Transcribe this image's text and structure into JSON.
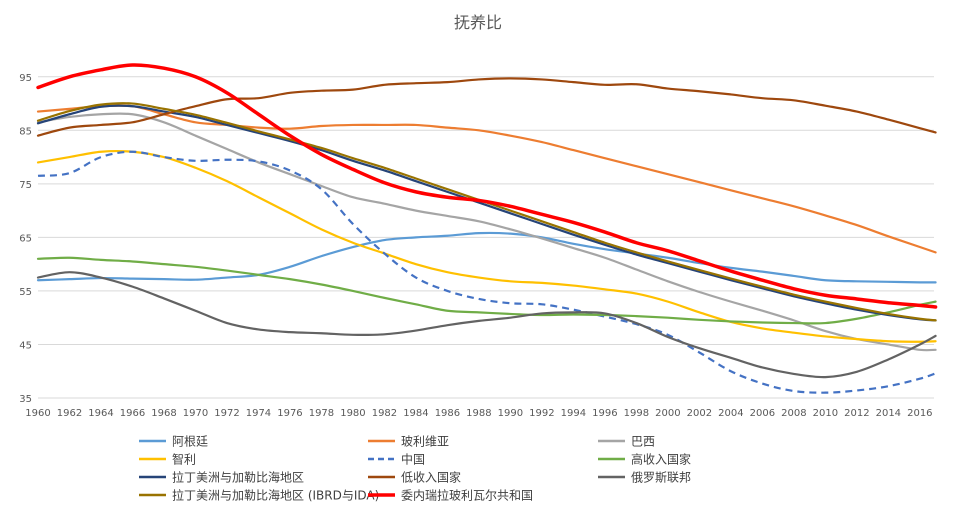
{
  "chart_data": {
    "type": "line",
    "title": "抚养比",
    "xlabel": "",
    "ylabel": "",
    "x": [
      1960,
      1962,
      1964,
      1966,
      1968,
      1970,
      1972,
      1974,
      1976,
      1978,
      1980,
      1982,
      1984,
      1986,
      1988,
      1990,
      1992,
      1994,
      1996,
      1998,
      2000,
      2002,
      2004,
      2006,
      2008,
      2010,
      2012,
      2014,
      2016,
      2017
    ],
    "x_tick_labels": [
      "1960",
      "1962",
      "1964",
      "1966",
      "1968",
      "1970",
      "1972",
      "1974",
      "1976",
      "1978",
      "1980",
      "1982",
      "1984",
      "1986",
      "1988",
      "1990",
      "1992",
      "1994",
      "1996",
      "1998",
      "2000",
      "2002",
      "2004",
      "2006",
      "2008",
      "2010",
      "2012",
      "2014",
      "2016"
    ],
    "ylim": [
      35,
      100
    ],
    "y_ticks": [
      35,
      45,
      55,
      65,
      75,
      85,
      95
    ],
    "y_tick_labels": [
      "35",
      "45",
      "55",
      "65",
      "75",
      "85",
      "95"
    ],
    "grid": "horizontal",
    "legend_position": "bottom",
    "series": [
      {
        "name": "阿根廷",
        "color": "#5B9BD5",
        "dash": false,
        "width": 2.2,
        "values": [
          57,
          57.2,
          57.4,
          57.3,
          57.2,
          57.1,
          57.5,
          58,
          59.5,
          61.5,
          63.2,
          64.5,
          65,
          65.3,
          65.8,
          65.7,
          65,
          63.8,
          62.8,
          62,
          61.2,
          60.2,
          59.3,
          58.6,
          57.8,
          57,
          56.8,
          56.7,
          56.6,
          56.6
        ]
      },
      {
        "name": "玻利维亚",
        "color": "#ED7D31",
        "dash": false,
        "width": 2.2,
        "values": [
          88.5,
          89,
          89.5,
          89.5,
          88,
          86.5,
          86,
          85.5,
          85.3,
          85.8,
          86,
          86,
          86,
          85.5,
          85,
          84,
          82.8,
          81.3,
          79.8,
          78.3,
          76.8,
          75.3,
          73.8,
          72.3,
          70.8,
          69.1,
          67.3,
          65.2,
          63.2,
          62.2
        ]
      },
      {
        "name": "巴西",
        "color": "#A5A5A5",
        "dash": false,
        "width": 2.2,
        "values": [
          86.5,
          87.5,
          88,
          88,
          86.5,
          84,
          81.5,
          79,
          76.8,
          74.6,
          72.5,
          71.3,
          70,
          69,
          68,
          66.5,
          64.8,
          63,
          61.2,
          59,
          56.8,
          54.8,
          53,
          51.3,
          49.5,
          47.5,
          46,
          45,
          44,
          44
        ]
      },
      {
        "name": "智利",
        "color": "#FFC000",
        "dash": false,
        "width": 2.2,
        "values": [
          79,
          80,
          81,
          81,
          80,
          78,
          75.5,
          72.5,
          69.5,
          66.5,
          64,
          62,
          60,
          58.5,
          57.5,
          56.8,
          56.5,
          56,
          55.3,
          54.5,
          53,
          51,
          49.2,
          48,
          47.2,
          46.5,
          46,
          45.6,
          45.5,
          45.6
        ]
      },
      {
        "name": "中国",
        "color": "#4472C4",
        "dash": true,
        "width": 2.2,
        "values": [
          76.5,
          77,
          80,
          81,
          80,
          79.3,
          79.5,
          79.2,
          77.5,
          74,
          67.5,
          62,
          57.5,
          55,
          53.5,
          52.7,
          52.5,
          51.5,
          50.2,
          48.8,
          46.8,
          43.5,
          40,
          37.7,
          36.3,
          36,
          36.4,
          37.2,
          38.6,
          39.6
        ]
      },
      {
        "name": "高收入国家",
        "color": "#70AD47",
        "dash": false,
        "width": 2.2,
        "values": [
          61,
          61.2,
          60.8,
          60.5,
          60,
          59.5,
          58.8,
          58,
          57.2,
          56.2,
          55,
          53.7,
          52.5,
          51.3,
          51,
          50.7,
          50.5,
          50.6,
          50.5,
          50.3,
          50,
          49.6,
          49.3,
          49.1,
          49,
          49,
          49.8,
          51,
          52.4,
          53
        ]
      },
      {
        "name": "拉丁美洲与加勒比海地区",
        "color": "#264478",
        "dash": false,
        "width": 2.2,
        "values": [
          86.3,
          88,
          89.4,
          89.5,
          88.5,
          87.5,
          86,
          84.5,
          83,
          81.3,
          79.3,
          77.5,
          75.5,
          73.5,
          71.5,
          69.5,
          67.5,
          65.5,
          63.6,
          61.8,
          60.2,
          58.6,
          57,
          55.5,
          54,
          52.7,
          51.5,
          50.5,
          49.7,
          49.5
        ]
      },
      {
        "name": "低收入国家",
        "color": "#9E480E",
        "dash": false,
        "width": 2.2,
        "values": [
          84,
          85.5,
          86,
          86.5,
          88,
          89.5,
          90.8,
          91,
          92,
          92.4,
          92.6,
          93.5,
          93.8,
          94,
          94.5,
          94.7,
          94.5,
          94,
          93.5,
          93.6,
          92.8,
          92.3,
          91.7,
          91,
          90.6,
          89.6,
          88.5,
          87,
          85.4,
          84.6
        ]
      },
      {
        "name": "俄罗斯联邦",
        "color": "#636363",
        "dash": false,
        "width": 2.2,
        "values": [
          57.5,
          58.5,
          57.5,
          55.8,
          53.6,
          51.3,
          49,
          47.8,
          47.3,
          47.1,
          46.8,
          46.9,
          47.6,
          48.6,
          49.4,
          50,
          50.8,
          51,
          50.8,
          49,
          46.4,
          44.3,
          42.5,
          40.7,
          39.5,
          38.9,
          39.9,
          42.2,
          45,
          46.6
        ]
      },
      {
        "name": "拉丁美洲与加勒比海地区 (IBRD与IDA)",
        "color": "#997300",
        "dash": false,
        "width": 2.2,
        "values": [
          86.8,
          88.6,
          89.8,
          90,
          89,
          87.9,
          86.4,
          84.8,
          83.3,
          81.7,
          79.8,
          78,
          76,
          74,
          72,
          70,
          68,
          66,
          64,
          62.2,
          60.5,
          58.9,
          57.3,
          55.8,
          54.3,
          53,
          51.8,
          50.7,
          49.8,
          49.5
        ]
      },
      {
        "name": "委内瑞拉玻利瓦尔共和国",
        "color": "#FF0000",
        "dash": false,
        "width": 3.5,
        "values": [
          93,
          95,
          96.3,
          97.2,
          96.6,
          95,
          92,
          88,
          84,
          80.5,
          77.7,
          75.2,
          73.5,
          72.5,
          71.9,
          70.8,
          69.3,
          67.8,
          66,
          64,
          62.5,
          60.6,
          58.7,
          57,
          55.4,
          54.2,
          53.5,
          52.8,
          52.3,
          52
        ]
      }
    ]
  }
}
